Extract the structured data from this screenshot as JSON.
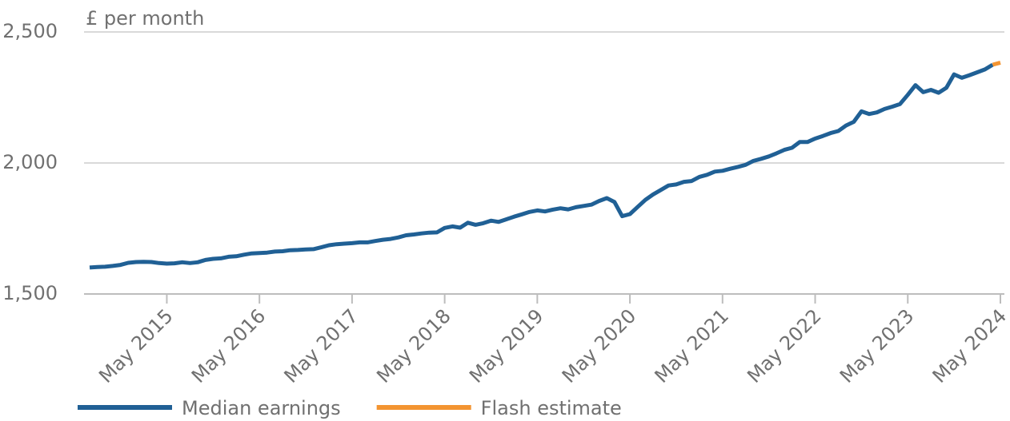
{
  "chart_data": {
    "type": "line",
    "y_label": "£ per month",
    "x": [
      "2014-07",
      "2014-08",
      "2014-09",
      "2014-10",
      "2014-11",
      "2014-12",
      "2015-01",
      "2015-02",
      "2015-03",
      "2015-04",
      "2015-05",
      "2015-06",
      "2015-07",
      "2015-08",
      "2015-09",
      "2015-10",
      "2015-11",
      "2015-12",
      "2016-01",
      "2016-02",
      "2016-03",
      "2016-04",
      "2016-05",
      "2016-06",
      "2016-07",
      "2016-08",
      "2016-09",
      "2016-10",
      "2016-11",
      "2016-12",
      "2017-01",
      "2017-02",
      "2017-03",
      "2017-04",
      "2017-05",
      "2017-06",
      "2017-07",
      "2017-08",
      "2017-09",
      "2017-10",
      "2017-11",
      "2017-12",
      "2018-01",
      "2018-02",
      "2018-03",
      "2018-04",
      "2018-05",
      "2018-06",
      "2018-07",
      "2018-08",
      "2018-09",
      "2018-10",
      "2018-11",
      "2018-12",
      "2019-01",
      "2019-02",
      "2019-03",
      "2019-04",
      "2019-05",
      "2019-06",
      "2019-07",
      "2019-08",
      "2019-09",
      "2019-10",
      "2019-11",
      "2019-12",
      "2020-01",
      "2020-02",
      "2020-03",
      "2020-04",
      "2020-05",
      "2020-06",
      "2020-07",
      "2020-08",
      "2020-09",
      "2020-10",
      "2020-11",
      "2020-12",
      "2021-01",
      "2021-02",
      "2021-03",
      "2021-04",
      "2021-05",
      "2021-06",
      "2021-07",
      "2021-08",
      "2021-09",
      "2021-10",
      "2021-11",
      "2021-12",
      "2022-01",
      "2022-02",
      "2022-03",
      "2022-04",
      "2022-05",
      "2022-06",
      "2022-07",
      "2022-08",
      "2022-09",
      "2022-10",
      "2022-11",
      "2022-12",
      "2023-01",
      "2023-02",
      "2023-03",
      "2023-04",
      "2023-05",
      "2023-06",
      "2023-07",
      "2023-08",
      "2023-09",
      "2023-10",
      "2023-11",
      "2023-12",
      "2024-01",
      "2024-02",
      "2024-03",
      "2024-04",
      "2024-05"
    ],
    "series": [
      {
        "name": "Median earnings",
        "color": "#206095",
        "values": [
          1601,
          1603,
          1604,
          1607,
          1611,
          1619,
          1622,
          1623,
          1622,
          1618,
          1616,
          1617,
          1621,
          1618,
          1621,
          1630,
          1634,
          1636,
          1642,
          1644,
          1650,
          1655,
          1656,
          1658,
          1662,
          1663,
          1667,
          1668,
          1670,
          1671,
          1678,
          1686,
          1690,
          1692,
          1694,
          1697,
          1697,
          1702,
          1707,
          1710,
          1716,
          1724,
          1727,
          1731,
          1734,
          1735,
          1752,
          1758,
          1753,
          1772,
          1764,
          1770,
          1780,
          1775,
          1785,
          1795,
          1804,
          1813,
          1819,
          1815,
          1822,
          1827,
          1823,
          1831,
          1836,
          1841,
          1855,
          1866,
          1851,
          1797,
          1805,
          1832,
          1859,
          1880,
          1897,
          1914,
          1918,
          1928,
          1931,
          1947,
          1955,
          1967,
          1970,
          1978,
          1985,
          1993,
          2008,
          2016,
          2025,
          2037,
          2050,
          2058,
          2080,
          2080,
          2093,
          2103,
          2114,
          2122,
          2143,
          2157,
          2197,
          2187,
          2193,
          2206,
          2215,
          2225,
          2260,
          2297,
          2270,
          2279,
          2268,
          2287,
          2338,
          2325,
          2335,
          2346,
          2357,
          2375,
          null
        ]
      },
      {
        "name": "Flash estimate",
        "color": "#f39431",
        "values": [
          null,
          null,
          null,
          null,
          null,
          null,
          null,
          null,
          null,
          null,
          null,
          null,
          null,
          null,
          null,
          null,
          null,
          null,
          null,
          null,
          null,
          null,
          null,
          null,
          null,
          null,
          null,
          null,
          null,
          null,
          null,
          null,
          null,
          null,
          null,
          null,
          null,
          null,
          null,
          null,
          null,
          null,
          null,
          null,
          null,
          null,
          null,
          null,
          null,
          null,
          null,
          null,
          null,
          null,
          null,
          null,
          null,
          null,
          null,
          null,
          null,
          null,
          null,
          null,
          null,
          null,
          null,
          null,
          null,
          null,
          null,
          null,
          null,
          null,
          null,
          null,
          null,
          null,
          null,
          null,
          null,
          null,
          null,
          null,
          null,
          null,
          null,
          null,
          null,
          null,
          null,
          null,
          null,
          null,
          null,
          null,
          null,
          null,
          null,
          null,
          null,
          null,
          null,
          null,
          null,
          null,
          null,
          null,
          null,
          null,
          null,
          null,
          null,
          null,
          null,
          null,
          null,
          2375,
          2383
        ]
      }
    ],
    "xlim": [
      "2014-07",
      "2024-05"
    ],
    "xticks": [
      {
        "value": "2015-05",
        "label": "May 2015"
      },
      {
        "value": "2016-05",
        "label": "May 2016"
      },
      {
        "value": "2017-05",
        "label": "May 2017"
      },
      {
        "value": "2018-05",
        "label": "May 2018"
      },
      {
        "value": "2019-05",
        "label": "May 2019"
      },
      {
        "value": "2020-05",
        "label": "May 2020"
      },
      {
        "value": "2021-05",
        "label": "May 2021"
      },
      {
        "value": "2022-05",
        "label": "May 2022"
      },
      {
        "value": "2023-05",
        "label": "May 2023"
      },
      {
        "value": "2024-05",
        "label": "May 2024"
      }
    ],
    "ylim": [
      1500,
      2500
    ],
    "yticks": [
      {
        "value": 1500,
        "label": "1,500"
      },
      {
        "value": 2000,
        "label": "2,000"
      },
      {
        "value": 2500,
        "label": "2,500"
      }
    ],
    "grid": true,
    "legend": "bottom"
  }
}
